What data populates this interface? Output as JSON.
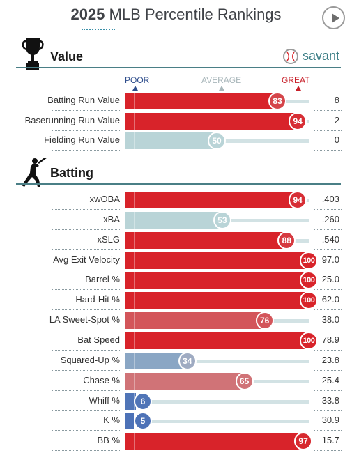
{
  "header": {
    "year": "2025",
    "title": "MLB Percentile Rankings"
  },
  "brand": {
    "label": "savant"
  },
  "scale": {
    "poor": "POOR",
    "average": "AVERAGE",
    "great": "GREAT"
  },
  "colors": {
    "great_red": "#d8232a",
    "average_blue": "#b9d4d7",
    "poor_blue": "#3b66b4",
    "section_rule": "#4a7f86"
  },
  "sections": [
    {
      "title": "Value",
      "icon": "trophy-icon"
    },
    {
      "title": "Batting",
      "icon": "batter-icon"
    }
  ],
  "chart_data": {
    "type": "bar",
    "orientation": "horizontal",
    "xlim": [
      0,
      100
    ],
    "groups": [
      {
        "section": "Value",
        "categories": [
          "Batting Run Value",
          "Baserunning Run Value",
          "Fielding Run Value"
        ],
        "percentiles": [
          83,
          94,
          50
        ],
        "stat_values": [
          "8",
          "2",
          "0"
        ]
      },
      {
        "section": "Batting",
        "categories": [
          "xwOBA",
          "xBA",
          "xSLG",
          "Avg Exit Velocity",
          "Barrel %",
          "Hard-Hit %",
          "LA Sweet-Spot %",
          "Bat Speed",
          "Squared-Up %",
          "Chase %",
          "Whiff %",
          "K %",
          "BB %"
        ],
        "percentiles": [
          94,
          53,
          88,
          100,
          100,
          100,
          76,
          100,
          34,
          65,
          6,
          5,
          97
        ],
        "stat_values": [
          ".403",
          ".260",
          ".540",
          "97.0",
          "25.0",
          "62.0",
          "38.0",
          "78.9",
          "23.8",
          "25.4",
          "33.8",
          "30.9",
          "15.7"
        ]
      }
    ]
  }
}
